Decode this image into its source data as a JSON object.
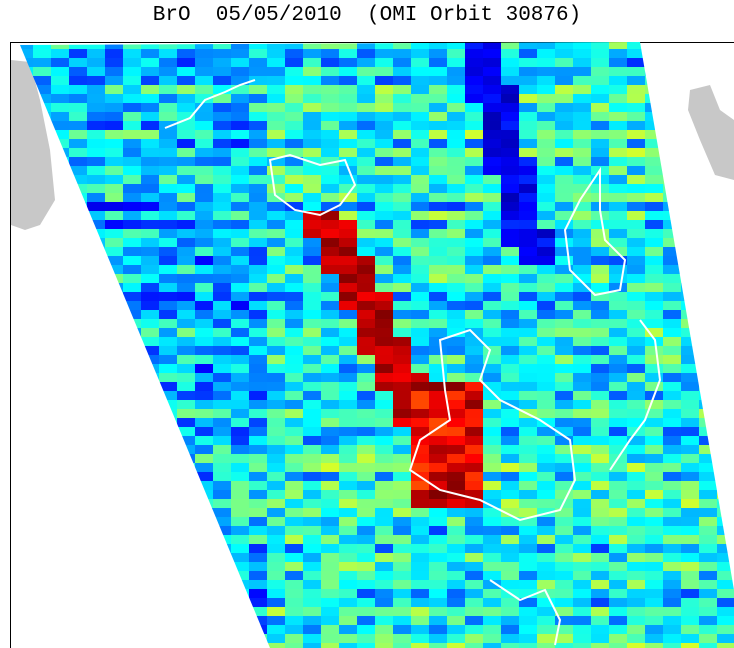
{
  "title": "BrO  05/05/2010  (OMI Orbit 30876)"
}
